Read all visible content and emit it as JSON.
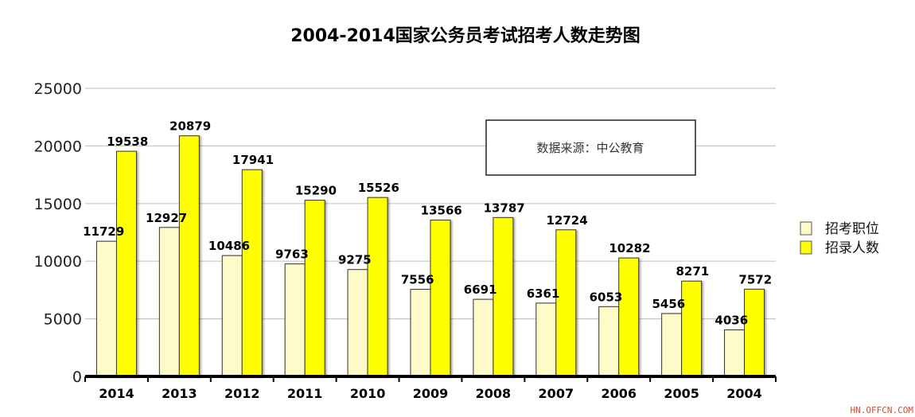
{
  "chart_data": {
    "type": "bar",
    "title": "2004-2014国家公务员考试招考人数走势图",
    "xlabel": "",
    "ylabel": "",
    "ylim": [
      0,
      25000
    ],
    "yticks": [
      0,
      5000,
      10000,
      15000,
      20000,
      25000
    ],
    "grid": true,
    "legend_position": "right",
    "categories": [
      "2014",
      "2013",
      "2012",
      "2011",
      "2010",
      "2009",
      "2008",
      "2007",
      "2006",
      "2005",
      "2004"
    ],
    "series": [
      {
        "name": "招考职位",
        "color": "#fffbc9",
        "values": [
          11729,
          12927,
          10486,
          9763,
          9275,
          7556,
          6691,
          6361,
          6053,
          5456,
          4036
        ]
      },
      {
        "name": "招录人数",
        "color": "#ffff00",
        "values": [
          19538,
          20879,
          17941,
          15290,
          15526,
          13566,
          13787,
          12724,
          10282,
          8271,
          7572
        ]
      }
    ],
    "annotation": "数据来源：中公教育"
  },
  "watermark": "HN.OFFCN.COM"
}
